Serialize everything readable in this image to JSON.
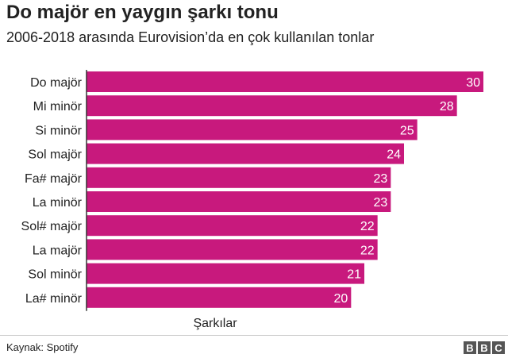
{
  "header": {
    "title": "Do majör en yaygın şarkı tonu",
    "subtitle": "2006-2018 arasında Eurovision’da en çok kullanılan tonlar"
  },
  "chart_data": {
    "type": "bar",
    "orientation": "horizontal",
    "categories": [
      "Do majör",
      "Mi minör",
      "Si minör",
      "Sol majör",
      "Fa# majör",
      "La minör",
      "Sol# majör",
      "La majör",
      "Sol minör",
      "La# minör"
    ],
    "values": [
      30,
      28,
      25,
      24,
      23,
      23,
      22,
      22,
      21,
      20
    ],
    "xlabel": "Şarkılar",
    "ylabel": "",
    "xlim": [
      0,
      30
    ],
    "grid": false,
    "bar_color": "#c8197d"
  },
  "footer": {
    "source": "Kaynak: Spotify",
    "logo": [
      "B",
      "B",
      "C"
    ]
  }
}
